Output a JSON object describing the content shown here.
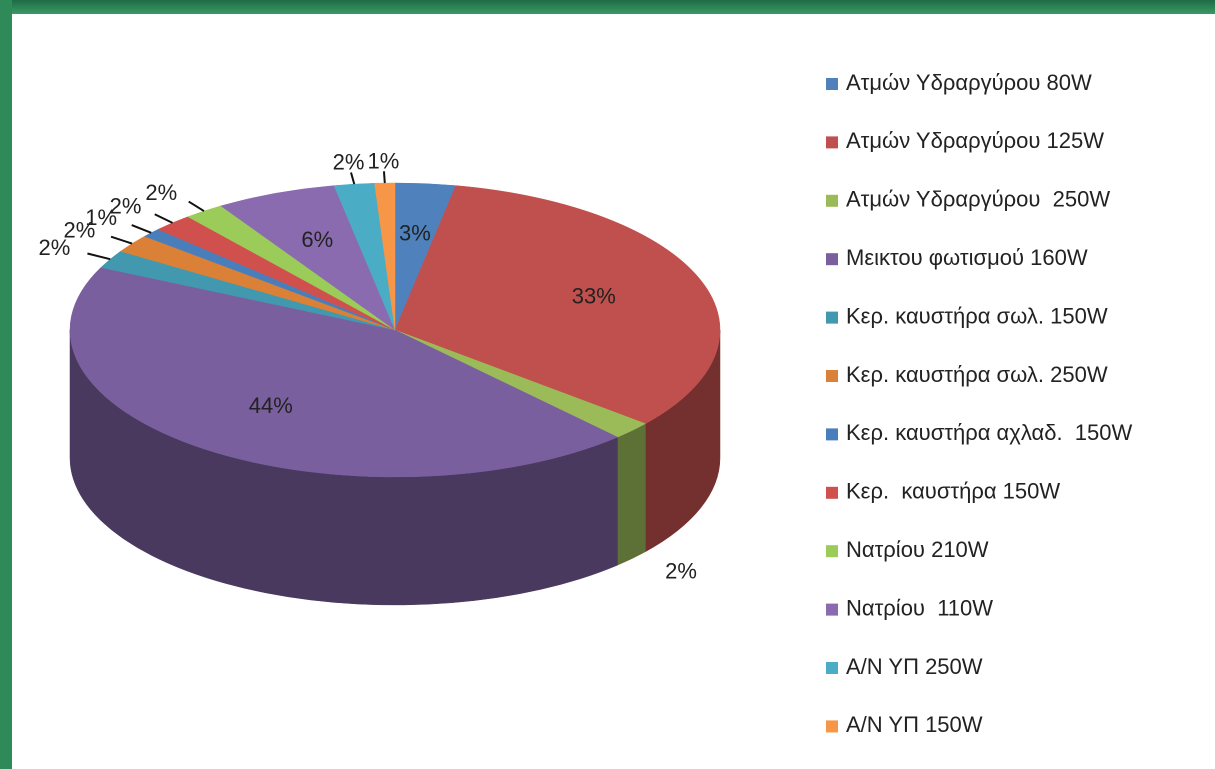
{
  "chart_data": {
    "type": "pie3d",
    "categories": [
      "Ατμών Υδραργύρου 80W",
      "Ατμών Υδραργύρου 125W",
      "Ατμών Υδραργύρου  250W",
      "Μεικτου φωτισμού 160W",
      "Κερ. καυστήρα σωλ. 150W",
      "Κερ. καυστήρα σωλ. 250W",
      "Κερ. καυστήρα αχλαδ.  150W",
      "Κερ.  καυστήρα 150W",
      "Νατρίου 210W",
      "Νατρίου  110W",
      "Α/Ν ΥΠ 250W",
      "Α/Ν ΥΠ 150W"
    ],
    "values": [
      3,
      33,
      2,
      44,
      2,
      2,
      1,
      2,
      2,
      6,
      2,
      1
    ],
    "value_labels": [
      "3%",
      "33%",
      "2%",
      "44%",
      "2%",
      "2%",
      "1%",
      "2%",
      "2%",
      "6%",
      "2%",
      "1%"
    ],
    "colors": [
      "#4f81bd",
      "#c0504d",
      "#9bbb59",
      "#7a5f9e",
      "#4198af",
      "#da8137",
      "#4a7ebb",
      "#d0504d",
      "#9bcb59",
      "#8a6bb0",
      "#4bacc6",
      "#f79646"
    ],
    "legend": "right"
  }
}
